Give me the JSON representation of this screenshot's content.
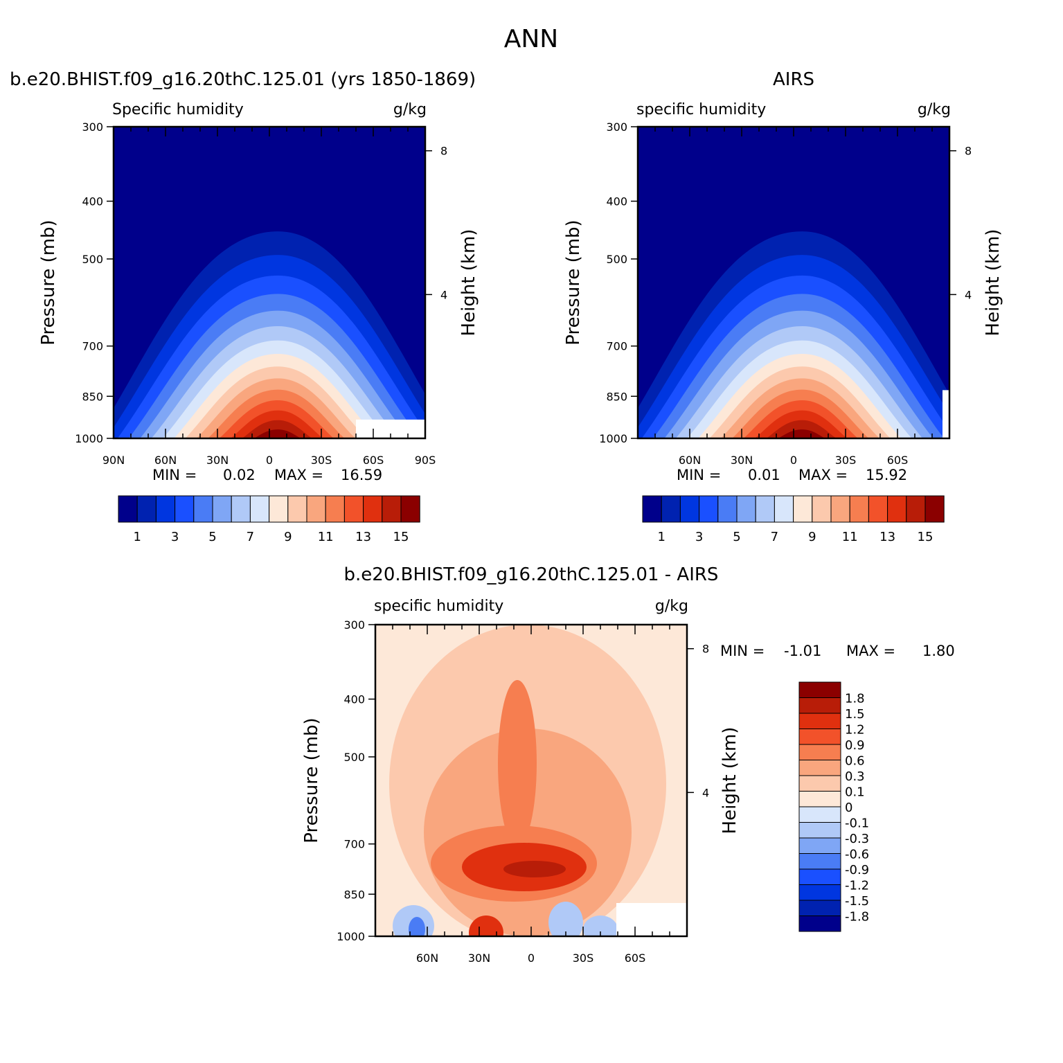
{
  "page_title": "ANN",
  "chart_data": [
    {
      "type": "heatmap",
      "id": "model",
      "title": "b.e20.BHIST.f09_g16.20thC.125.01 (yrs 1850-1869)",
      "left_label": "Specific humidity",
      "right_label": "g/kg",
      "ylabel": "Pressure (mb)",
      "y2label": "Height (km)",
      "xlabel": "",
      "x_ticks": [
        "90N",
        "60N",
        "30N",
        "0",
        "30S",
        "60S",
        "90S"
      ],
      "y_ticks": [
        "300",
        "400",
        "500",
        "700",
        "850",
        "1000"
      ],
      "y2_ticks": [
        "8",
        "4"
      ],
      "min_label": "MIN =",
      "min_value": "0.02",
      "max_label": "MAX =",
      "max_value": "16.59",
      "colorbar_levels": [
        "1",
        "3",
        "5",
        "7",
        "9",
        "11",
        "13",
        "15"
      ],
      "peak_latitude": -5,
      "peak_value": 16.59
    },
    {
      "type": "heatmap",
      "id": "obs",
      "title": "AIRS",
      "left_label": "specific humidity",
      "right_label": "g/kg",
      "ylabel": "Pressure (mb)",
      "y2label": "Height (km)",
      "x_ticks": [
        "60N",
        "30N",
        "0",
        "30S",
        "60S"
      ],
      "y_ticks": [
        "300",
        "400",
        "500",
        "700",
        "850",
        "1000"
      ],
      "y2_ticks": [
        "8",
        "4"
      ],
      "min_label": "MIN =",
      "min_value": "0.01",
      "max_label": "MAX =",
      "max_value": "15.92",
      "colorbar_levels": [
        "1",
        "3",
        "5",
        "7",
        "9",
        "11",
        "13",
        "15"
      ],
      "peak_latitude": -5,
      "peak_value": 15.92
    },
    {
      "type": "heatmap",
      "id": "diff",
      "title": "b.e20.BHIST.f09_g16.20thC.125.01 - AIRS",
      "left_label": "specific humidity",
      "right_label": "g/kg",
      "ylabel": "Pressure (mb)",
      "y2label": "Height (km)",
      "x_ticks": [
        "60N",
        "30N",
        "0",
        "30S",
        "60S"
      ],
      "y_ticks": [
        "300",
        "400",
        "500",
        "700",
        "850",
        "1000"
      ],
      "y2_ticks": [
        "8",
        "4"
      ],
      "min_label": "MIN =",
      "min_value": "-1.01",
      "max_label": "MAX =",
      "max_value": "1.80",
      "colorbar_levels": [
        "1.8",
        "1.5",
        "1.2",
        "0.9",
        "0.6",
        "0.3",
        "0.1",
        "0",
        "-0.1",
        "-0.3",
        "-0.6",
        "-0.9",
        "-1.2",
        "-1.5",
        "-1.8"
      ]
    }
  ],
  "colors": {
    "scale": [
      "#00008b",
      "#0022b0",
      "#0036e0",
      "#1a50ff",
      "#4a7cf5",
      "#7fa6f5",
      "#b0c9f7",
      "#d8e6fb",
      "#fde8d8",
      "#fcc9ad",
      "#f9a67e",
      "#f67e50",
      "#f2522a",
      "#e0300f",
      "#b81d08",
      "#8b0000"
    ],
    "axis": "#000000",
    "background": "#ffffff"
  }
}
